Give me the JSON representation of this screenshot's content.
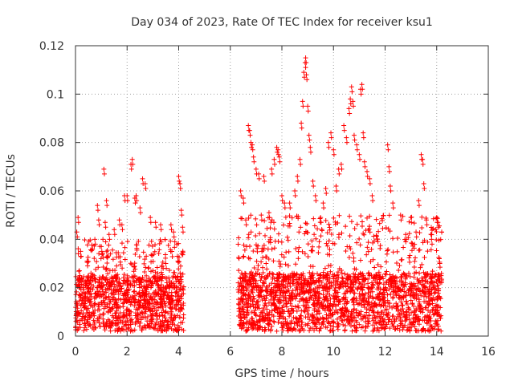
{
  "chart_data": {
    "type": "scatter",
    "title": "Day 034 of 2023, Rate Of TEC Index for receiver ksu1",
    "xlabel": "GPS time / hours",
    "ylabel": "ROTI / TECUs",
    "xlim": [
      0,
      16
    ],
    "ylim": [
      0,
      0.12
    ],
    "xticks": [
      "0",
      "2",
      "4",
      "6",
      "8",
      "10",
      "12",
      "14",
      "16"
    ],
    "yticks": [
      "0",
      "0.02",
      "0.04",
      "0.06",
      "0.08",
      "0.1",
      "0.12"
    ],
    "grid": true,
    "marker": "+",
    "color": "#ff0000",
    "series": [
      {
        "points": [
          [
            0.05,
            0.043
          ],
          [
            0.1,
            0.049
          ],
          [
            0.15,
            0.027
          ],
          [
            0.2,
            0.035
          ],
          [
            0.3,
            0.02
          ],
          [
            0.45,
            0.031
          ],
          [
            0.6,
            0.026
          ],
          [
            0.75,
            0.04
          ],
          [
            0.85,
            0.054
          ],
          [
            0.9,
            0.048
          ],
          [
            1.0,
            0.037
          ],
          [
            1.1,
            0.069
          ],
          [
            1.15,
            0.047
          ],
          [
            1.2,
            0.056
          ],
          [
            1.3,
            0.042
          ],
          [
            1.5,
            0.044
          ],
          [
            1.7,
            0.048
          ],
          [
            1.8,
            0.046
          ],
          [
            1.9,
            0.058
          ],
          [
            2.0,
            0.058
          ],
          [
            2.15,
            0.071
          ],
          [
            2.2,
            0.073
          ],
          [
            2.3,
            0.057
          ],
          [
            2.35,
            0.058
          ],
          [
            2.5,
            0.053
          ],
          [
            2.6,
            0.065
          ],
          [
            2.7,
            0.063
          ],
          [
            2.9,
            0.049
          ],
          [
            3.1,
            0.047
          ],
          [
            3.3,
            0.046
          ],
          [
            3.5,
            0.03
          ],
          [
            3.7,
            0.046
          ],
          [
            3.8,
            0.043
          ],
          [
            3.95,
            0.033
          ],
          [
            4.0,
            0.066
          ],
          [
            4.05,
            0.063
          ],
          [
            4.1,
            0.052
          ],
          [
            4.15,
            0.045
          ],
          [
            6.4,
            0.06
          ],
          [
            6.5,
            0.057
          ],
          [
            6.6,
            0.048
          ],
          [
            6.7,
            0.087
          ],
          [
            6.75,
            0.085
          ],
          [
            6.8,
            0.08
          ],
          [
            6.85,
            0.079
          ],
          [
            6.9,
            0.074
          ],
          [
            7.0,
            0.069
          ],
          [
            7.1,
            0.067
          ],
          [
            7.2,
            0.05
          ],
          [
            7.3,
            0.066
          ],
          [
            7.5,
            0.051
          ],
          [
            7.6,
            0.069
          ],
          [
            7.7,
            0.073
          ],
          [
            7.8,
            0.078
          ],
          [
            7.85,
            0.077
          ],
          [
            7.9,
            0.074
          ],
          [
            8.0,
            0.058
          ],
          [
            8.1,
            0.055
          ],
          [
            8.3,
            0.055
          ],
          [
            8.5,
            0.06
          ],
          [
            8.6,
            0.066
          ],
          [
            8.7,
            0.073
          ],
          [
            8.75,
            0.088
          ],
          [
            8.8,
            0.097
          ],
          [
            8.85,
            0.109
          ],
          [
            8.9,
            0.113
          ],
          [
            8.92,
            0.115
          ],
          [
            8.95,
            0.108
          ],
          [
            9.0,
            0.095
          ],
          [
            9.05,
            0.083
          ],
          [
            9.1,
            0.078
          ],
          [
            9.2,
            0.064
          ],
          [
            9.3,
            0.058
          ],
          [
            9.5,
            0.049
          ],
          [
            9.6,
            0.055
          ],
          [
            9.7,
            0.061
          ],
          [
            9.8,
            0.08
          ],
          [
            9.9,
            0.084
          ],
          [
            10.0,
            0.077
          ],
          [
            10.1,
            0.062
          ],
          [
            10.2,
            0.069
          ],
          [
            10.3,
            0.071
          ],
          [
            10.4,
            0.087
          ],
          [
            10.5,
            0.082
          ],
          [
            10.6,
            0.094
          ],
          [
            10.65,
            0.098
          ],
          [
            10.7,
            0.103
          ],
          [
            10.75,
            0.097
          ],
          [
            10.8,
            0.083
          ],
          [
            10.9,
            0.079
          ],
          [
            11.0,
            0.075
          ],
          [
            11.05,
            0.102
          ],
          [
            11.1,
            0.104
          ],
          [
            11.15,
            0.084
          ],
          [
            11.2,
            0.072
          ],
          [
            11.3,
            0.068
          ],
          [
            11.4,
            0.065
          ],
          [
            11.5,
            0.058
          ],
          [
            12.1,
            0.079
          ],
          [
            12.15,
            0.07
          ],
          [
            12.2,
            0.062
          ],
          [
            12.3,
            0.055
          ],
          [
            12.6,
            0.05
          ],
          [
            12.8,
            0.042
          ],
          [
            13.0,
            0.049
          ],
          [
            13.2,
            0.043
          ],
          [
            13.3,
            0.056
          ],
          [
            13.4,
            0.075
          ],
          [
            13.45,
            0.073
          ],
          [
            13.5,
            0.063
          ],
          [
            13.6,
            0.048
          ],
          [
            13.8,
            0.04
          ],
          [
            14.0,
            0.049
          ],
          [
            14.05,
            0.047
          ],
          [
            14.1,
            0.032
          ]
        ]
      }
    ],
    "dense_bands": [
      {
        "x_start": 0.0,
        "x_end": 4.2,
        "y_low": 0.002,
        "y_mid": 0.013,
        "y_high": 0.04
      },
      {
        "x_start": 6.3,
        "x_end": 14.2,
        "y_low": 0.002,
        "y_mid": 0.014,
        "y_high": 0.05
      }
    ]
  }
}
